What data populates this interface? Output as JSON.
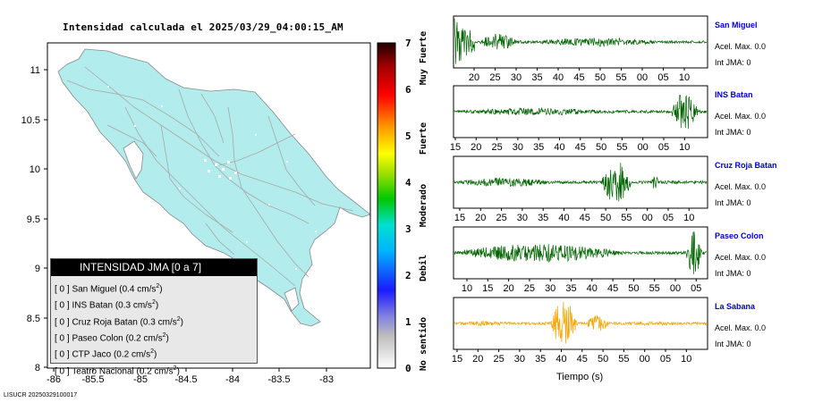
{
  "map": {
    "title": "Intensidad calculada el 2025/03/29_04:00:15_AM",
    "lon_ticks": [
      "-86",
      "-85.5",
      "-85",
      "-84.5",
      "-84",
      "-83.5",
      "-83"
    ],
    "lat_ticks": [
      "11",
      "10.5",
      "10",
      "9.5",
      "9",
      "8.5",
      "8"
    ],
    "footer": "LISUCR 20250329100017"
  },
  "colorbar": {
    "ticks": [
      "0",
      "1",
      "2",
      "3",
      "4",
      "5",
      "6",
      "7"
    ],
    "categories": [
      "No sentido",
      "Debil",
      "Moderado",
      "Fuerte",
      "Muy Fuerte"
    ]
  },
  "legend": {
    "title": "INTENSIDAD JMA [0 a 7]",
    "items": [
      {
        "level": "[ 0 ]",
        "name": "San Miguel",
        "value": "(0.4 cm/s",
        "unit_exp": "2",
        "close": ")"
      },
      {
        "level": "[ 0 ]",
        "name": "INS Batan",
        "value": "(0.3 cm/s",
        "unit_exp": "2",
        "close": ")"
      },
      {
        "level": "[ 0 ]",
        "name": "Cruz Roja Batan",
        "value": "(0.3 cm/s",
        "unit_exp": "2",
        "close": ")"
      },
      {
        "level": "[ 0 ]",
        "name": "Paseo Colon",
        "value": "(0.2 cm/s",
        "unit_exp": "2",
        "close": ")"
      },
      {
        "level": "[ 0 ]",
        "name": "CTP Jaco",
        "value": "(0.2 cm/s",
        "unit_exp": "2",
        "close": ")"
      },
      {
        "level": "[ 0 ]",
        "name": "Teatro Nacional",
        "value": "(0.2 cm/s",
        "unit_exp": "2",
        "close": ")"
      }
    ]
  },
  "stations": [
    {
      "name": "San Miguel",
      "acel": "Acel. Max. 0.0",
      "jma": "Int JMA: 0",
      "color": "#006400",
      "ticks": [
        "20",
        "25",
        "30",
        "35",
        "40",
        "45",
        "50",
        "55",
        "00",
        "05",
        "10"
      ]
    },
    {
      "name": "INS Batan",
      "acel": "Acel. Max. 0.0",
      "jma": "Int JMA: 0",
      "color": "#006400",
      "ticks": [
        "15",
        "20",
        "25",
        "30",
        "35",
        "40",
        "45",
        "50",
        "55",
        "00",
        "05",
        "10"
      ]
    },
    {
      "name": "Cruz Roja Batan",
      "acel": "Acel. Max. 0.0",
      "jma": "Int JMA: 0",
      "color": "#006400",
      "ticks": [
        "15",
        "20",
        "25",
        "30",
        "35",
        "40",
        "45",
        "50",
        "55",
        "00",
        "05",
        "10"
      ]
    },
    {
      "name": "Paseo Colon",
      "acel": "Acel. Max. 0.0",
      "jma": "Int JMA: 0",
      "color": "#006400",
      "ticks": [
        "10",
        "15",
        "20",
        "25",
        "30",
        "35",
        "40",
        "45",
        "50",
        "55",
        "00",
        "05"
      ]
    },
    {
      "name": "La Sabana",
      "acel": "Acel. Max. 0.0",
      "jma": "Int JMA: 0",
      "color": "#f5a300",
      "ticks": [
        "15",
        "20",
        "25",
        "30",
        "35",
        "40",
        "45",
        "50",
        "55",
        "00",
        "05",
        "10"
      ]
    }
  ],
  "xlabel": "Tiempo (s)",
  "colors": {
    "land": "#b2ecec",
    "roads": "#a8a8a8",
    "wave_green": "#006400",
    "wave_orange": "#f5a300",
    "station_name": "#0000cc"
  }
}
